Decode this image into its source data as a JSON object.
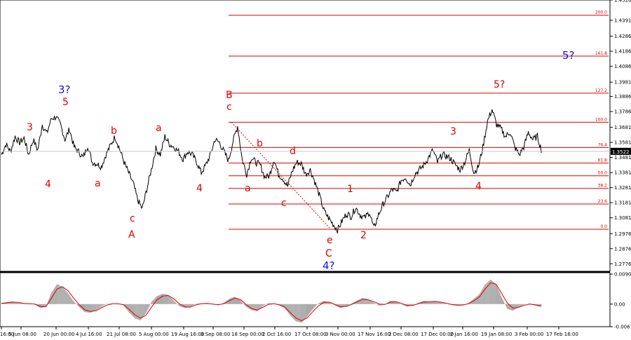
{
  "chart_data": [
    {
      "type": "line",
      "pane": "price",
      "ylim": [
        1.2726,
        1.4526
      ],
      "y_ticks": [
        "1.4526",
        "1.4391",
        "1.4286",
        "1.4186",
        "1.4086",
        "1.3981",
        "1.3886",
        "1.3786",
        "1.3681",
        "1.3581",
        "1.3481",
        "1.3381",
        "1.3281",
        "1.3181",
        "1.3081",
        "1.2976",
        "1.2876",
        "1.2776"
      ],
      "current_price": "1.3522",
      "fibonacci": {
        "base_price": 1.3005,
        "top_price": 1.3715,
        "levels": [
          {
            "label": "0.0",
            "ratio": 0.0
          },
          {
            "label": "23.6",
            "ratio": 0.236
          },
          {
            "label": "38.2",
            "ratio": 0.382
          },
          {
            "label": "50.0",
            "ratio": 0.5
          },
          {
            "label": "61.8",
            "ratio": 0.618
          },
          {
            "label": "76.4",
            "ratio": 0.764
          },
          {
            "label": "100.0",
            "ratio": 1.0
          },
          {
            "label": "127.2",
            "ratio": 1.272
          },
          {
            "label": "161.8",
            "ratio": 1.618
          },
          {
            "label": "200.0",
            "ratio": 2.0
          }
        ]
      },
      "series": [
        {
          "values": [
            1.35,
            1.357,
            1.352,
            1.362,
            1.358,
            1.361,
            1.35,
            1.36,
            1.353,
            1.37,
            1.364,
            1.374,
            1.375,
            1.37,
            1.36,
            1.367,
            1.355,
            1.352,
            1.348,
            1.356,
            1.345,
            1.344,
            1.342,
            1.35,
            1.356,
            1.362,
            1.354,
            1.345,
            1.338,
            1.331,
            1.32,
            1.314,
            1.327,
            1.34,
            1.354,
            1.35,
            1.362,
            1.357,
            1.355,
            1.352,
            1.347,
            1.352,
            1.35,
            1.345,
            1.338,
            1.343,
            1.35,
            1.36,
            1.358,
            1.352,
            1.346,
            1.359,
            1.369,
            1.347,
            1.337,
            1.348,
            1.345,
            1.343,
            1.335,
            1.336,
            1.347,
            1.337,
            1.334,
            1.329,
            1.339,
            1.345,
            1.344,
            1.337,
            1.34,
            1.332,
            1.323,
            1.313,
            1.308,
            1.304,
            1.3,
            1.306,
            1.311,
            1.309,
            1.315,
            1.31,
            1.308,
            1.312,
            1.301,
            1.31,
            1.317,
            1.322,
            1.327,
            1.325,
            1.333,
            1.335,
            1.33,
            1.337,
            1.34,
            1.343,
            1.348,
            1.353,
            1.345,
            1.35,
            1.349,
            1.347,
            1.343,
            1.34,
            1.345,
            1.353,
            1.338,
            1.342,
            1.355,
            1.372,
            1.38,
            1.37,
            1.367,
            1.362,
            1.365,
            1.355,
            1.35,
            1.355,
            1.365,
            1.36,
            1.362,
            1.352
          ]
        }
      ]
    },
    {
      "type": "area",
      "pane": "oscillator",
      "ylim": [
        -0.00679,
        0.00902
      ],
      "y_ticks": [
        "0.00902",
        "0.00",
        "-0.00679"
      ],
      "series": [
        {
          "values": [
            0.0003,
            0.0006,
            0.0008,
            0.0004,
            0.0001,
            0.0002,
            -0.0001,
            -0.0012,
            -0.0008,
            0.0035,
            0.006,
            0.0052,
            0.0032,
            0.0008,
            -0.0009,
            -0.0024,
            -0.0026,
            -0.0019,
            -0.0007,
            0.0001,
            0.0002,
            0.0001,
            -0.0004,
            -0.0026,
            -0.0043,
            -0.0049,
            -0.0028,
            0.0007,
            0.0024,
            0.0031,
            0.0028,
            0.0011,
            -0.0006,
            -0.0012,
            -0.0008,
            0.0001,
            0.0002,
            0.0003,
            -0.0001,
            -0.0003,
            0.0004,
            0.0016,
            0.0022,
            0.0012,
            -0.0008,
            -0.0018,
            -0.0022,
            -0.0006,
            0.0003,
            0.0002,
            -0.0004,
            -0.0013,
            -0.0036,
            -0.0052,
            -0.0056,
            -0.0038,
            -0.0015,
            0.0002,
            0.001,
            0.0006,
            -0.0004,
            -0.0012,
            -0.0007,
            0.0002,
            0.0011,
            0.0019,
            0.0014,
            0.0004,
            -0.0005,
            -0.0002,
            0.001,
            0.0008,
            -0.0001,
            -0.0008,
            -0.0004,
            0.0004,
            0.001,
            0.0007,
            0.0009,
            0.0006,
            0.0001,
            -0.0003,
            -0.0005,
            -0.0003,
            0.0003,
            0.0016,
            0.003,
            0.0058,
            0.0074,
            0.006,
            0.002,
            -0.0014,
            -0.002,
            -0.001,
            -0.0002,
            0.0002,
            -0.0004,
            -0.0008
          ]
        },
        {
          "values": [
            0.0002,
            0.0004,
            0.0006,
            0.0005,
            0.0002,
            0.0001,
            0.0,
            -0.0007,
            -0.0008,
            0.0018,
            0.0045,
            0.0052,
            0.004,
            0.0018,
            -0.0002,
            -0.0017,
            -0.0022,
            -0.002,
            -0.0011,
            -0.0003,
            0.0001,
            0.0001,
            -0.0002,
            -0.0016,
            -0.0032,
            -0.0042,
            -0.0034,
            -0.0009,
            0.0013,
            0.0024,
            0.0026,
            0.0016,
            0.0001,
            -0.0008,
            -0.0009,
            -0.0002,
            0.0001,
            0.0002,
            0.0,
            -0.0002,
            0.0001,
            0.001,
            0.0018,
            0.0014,
            -0.0001,
            -0.0013,
            -0.0018,
            -0.001,
            -0.0001,
            0.0001,
            -0.0002,
            -0.0009,
            -0.0026,
            -0.0042,
            -0.005,
            -0.0042,
            -0.0023,
            -0.0006,
            0.0005,
            0.0006,
            -0.0001,
            -0.0008,
            -0.0007,
            -0.0001,
            0.0007,
            0.0014,
            0.0013,
            0.0007,
            0.0,
            -0.0001,
            0.0006,
            0.0007,
            0.0002,
            -0.0004,
            -0.0004,
            0.0001,
            0.0006,
            0.0007,
            0.0008,
            0.0006,
            0.0003,
            -0.0001,
            -0.0003,
            -0.0003,
            0.0001,
            0.001,
            0.0022,
            0.0045,
            0.0064,
            0.006,
            0.0032,
            0.0004,
            -0.0012,
            -0.001,
            -0.0004,
            0.0,
            -0.0002,
            -0.0006
          ]
        }
      ]
    }
  ],
  "x_ticks": [
    "16:00",
    "5 Jun 08:00",
    "20 Jun 00:00",
    "4 Jul 16:00",
    "21 Jul 08:00",
    "5 Aug 00:00",
    "19 Aug 16:00",
    "3 Sep 08:00",
    "18 Sep 00:00",
    "2 Oct 16:00",
    "17 Oct 08:00",
    "3 Nov 00:00",
    "17 Nov 16:00",
    "2 Dec 08:00",
    "17 Dec 00:00",
    "2 Jan 16:00",
    "19 Jan 08:00",
    "3 Feb 00:00",
    "17 Feb 16:00"
  ],
  "wave_labels": {
    "red": [
      "3",
      "5",
      "4",
      "a",
      "b",
      "c",
      "A",
      "a",
      "b",
      "4",
      "B",
      "c",
      "b",
      "a",
      "d",
      "c",
      "e",
      "C",
      "1",
      "2",
      "3",
      "4",
      "5?"
    ],
    "blue": [
      "3?",
      "4?",
      "5?"
    ]
  },
  "colors": {
    "fib_line": "#e00000",
    "wave_red": "#e00000",
    "wave_blue": "#1414d0",
    "osc_fill": "#a8a8a8",
    "osc_signal": "#e00000"
  }
}
